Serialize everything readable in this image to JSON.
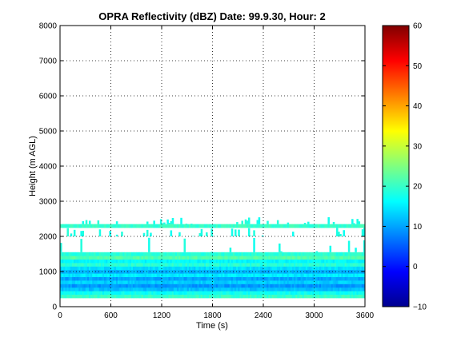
{
  "chart_data": {
    "type": "heatmap",
    "title": "OPRA Reflectivity (dBZ)  Date: 99.9.30, Hour: 2",
    "xlabel": "Time (s)",
    "ylabel": "Height (m AGL)",
    "xlim": [
      0,
      3600
    ],
    "ylim": [
      0,
      8000
    ],
    "xticks": [
      0,
      600,
      1200,
      1800,
      2400,
      3000,
      3600
    ],
    "yticks": [
      0,
      1000,
      2000,
      3000,
      4000,
      5000,
      6000,
      7000,
      8000
    ],
    "grid": true,
    "colorbar": {
      "min": -10,
      "max": 60,
      "ticks": [
        -10,
        0,
        10,
        20,
        30,
        40,
        50,
        60
      ],
      "colormap": "jet"
    },
    "layers": [
      {
        "height_range_m": [
          250,
          350
        ],
        "dbz": 20
      },
      {
        "height_range_m": [
          350,
          450
        ],
        "dbz": 17
      },
      {
        "height_range_m": [
          450,
          550
        ],
        "dbz": 12
      },
      {
        "height_range_m": [
          550,
          650
        ],
        "dbz": 9
      },
      {
        "height_range_m": [
          650,
          750
        ],
        "dbz": 13
      },
      {
        "height_range_m": [
          750,
          850
        ],
        "dbz": 10
      },
      {
        "height_range_m": [
          850,
          950
        ],
        "dbz": 15
      },
      {
        "height_range_m": [
          950,
          1050
        ],
        "dbz": 11
      },
      {
        "height_range_m": [
          1050,
          1150
        ],
        "dbz": 14
      },
      {
        "height_range_m": [
          1150,
          1250
        ],
        "dbz": 19
      },
      {
        "height_range_m": [
          1250,
          1350
        ],
        "dbz": 16
      },
      {
        "height_range_m": [
          1350,
          1450
        ],
        "dbz": 22
      },
      {
        "height_range_m": [
          1450,
          1550
        ],
        "dbz": 19
      },
      {
        "height_range_m": [
          1550,
          2000
        ],
        "dbz": 18,
        "note": "scattered echoes"
      },
      {
        "height_range_m": [
          2000,
          2250
        ],
        "dbz": 18,
        "note": "scattered echoes"
      },
      {
        "height_range_m": [
          2250,
          2350
        ],
        "dbz": 20
      },
      {
        "height_range_m": [
          2350,
          2550
        ],
        "dbz": 18,
        "note": "scattered echoes"
      }
    ]
  }
}
